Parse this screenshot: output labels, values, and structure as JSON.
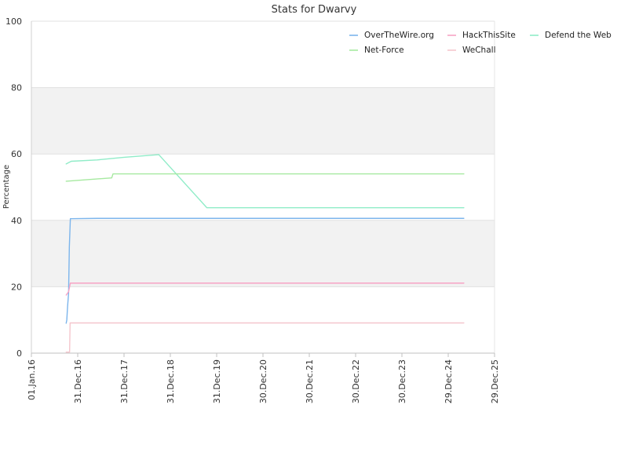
{
  "chart_data": {
    "type": "line",
    "title": "Stats for Dwarvy",
    "xlabel": "",
    "ylabel": "Percentage",
    "ylim": [
      0,
      100
    ],
    "yticks": [
      0,
      20,
      40,
      60,
      80,
      100
    ],
    "grid": true,
    "legend_position": "top-right",
    "x_ticks": [
      {
        "date": "2016-01-01",
        "label": "01.Jan.16"
      },
      {
        "date": "2016-12-31",
        "label": "31.Dec.16"
      },
      {
        "date": "2017-12-31",
        "label": "31.Dec.17"
      },
      {
        "date": "2018-12-31",
        "label": "31.Dec.18"
      },
      {
        "date": "2019-12-31",
        "label": "31.Dec.19"
      },
      {
        "date": "2020-12-30",
        "label": "30.Dec.20"
      },
      {
        "date": "2021-12-30",
        "label": "30.Dec.21"
      },
      {
        "date": "2022-12-30",
        "label": "30.Dec.22"
      },
      {
        "date": "2023-12-30",
        "label": "30.Dec.23"
      },
      {
        "date": "2024-12-29",
        "label": "29.Dec.24"
      },
      {
        "date": "2025-12-29",
        "label": "29.Dec.25"
      }
    ],
    "series": [
      {
        "name": "OverTheWire.org",
        "color": "#7cb5ec",
        "points": [
          [
            "2016-10-01",
            9
          ],
          [
            "2016-10-06",
            10
          ],
          [
            "2016-10-12",
            14
          ],
          [
            "2016-10-20",
            18
          ],
          [
            "2016-10-26",
            32
          ],
          [
            "2016-11-03",
            40.5
          ],
          [
            "2017-06-01",
            40.6
          ],
          [
            "2025-05-01",
            40.6
          ]
        ]
      },
      {
        "name": "HackThisSite",
        "color": "#f7a3c4",
        "points": [
          [
            "2016-10-01",
            17.5
          ],
          [
            "2016-10-20",
            18.5
          ],
          [
            "2016-11-03",
            21.1
          ],
          [
            "2025-05-01",
            21.1
          ]
        ]
      },
      {
        "name": "Defend the Web",
        "color": "#90ecc8",
        "points": [
          [
            "2016-10-01",
            57
          ],
          [
            "2016-11-10",
            57.8
          ],
          [
            "2017-06-01",
            58.2
          ],
          [
            "2018-01-01",
            59
          ],
          [
            "2018-10-01",
            59.8
          ],
          [
            "2019-10-15",
            43.8
          ],
          [
            "2025-05-01",
            43.8
          ]
        ]
      },
      {
        "name": "Net-Force",
        "color": "#a6e9a0",
        "points": [
          [
            "2016-10-01",
            51.8
          ],
          [
            "2017-09-25",
            52.8
          ],
          [
            "2017-10-05",
            54
          ],
          [
            "2025-05-01",
            54
          ]
        ]
      },
      {
        "name": "WeChall",
        "color": "#f5c6cd",
        "points": [
          [
            "2016-10-01",
            0.3
          ],
          [
            "2016-10-28",
            0.3
          ],
          [
            "2016-11-01",
            9.1
          ],
          [
            "2025-05-01",
            9.1
          ]
        ]
      }
    ]
  }
}
